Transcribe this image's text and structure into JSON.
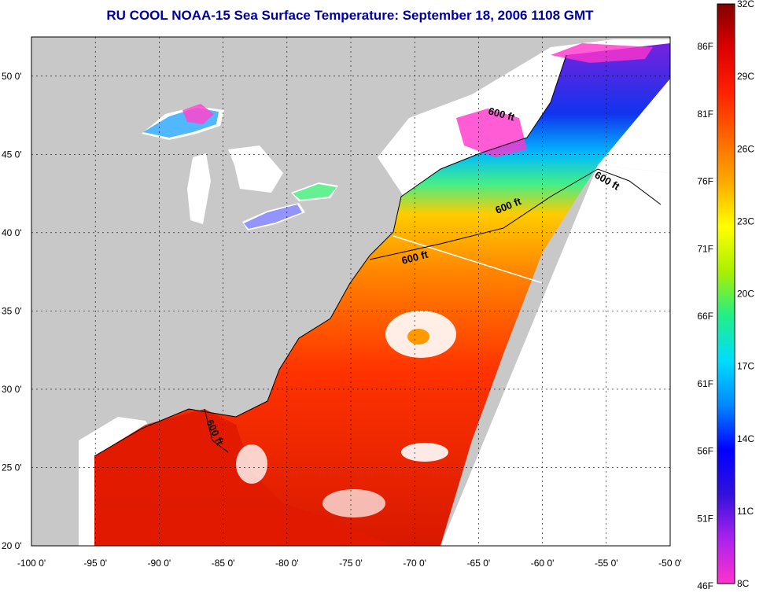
{
  "title": "RU COOL  NOAA-15  Sea Surface Temperature:  September 18, 2006 1108 GMT",
  "map": {
    "lon_range": [
      -100,
      -50
    ],
    "lat_range": [
      20,
      52.5
    ],
    "lon_ticks": [
      "-100 0'",
      "-95 0'",
      "-90 0'",
      "-85 0'",
      "-80 0'",
      "-75 0'",
      "-70 0'",
      "-65 0'",
      "-60 0'",
      "-55 0'",
      "-50 0'"
    ],
    "lat_ticks": [
      {
        "lat": 20,
        "label": "20 0'"
      },
      {
        "lat": 25,
        "label": "25 0'"
      },
      {
        "lat": 30,
        "label": "30 0'"
      },
      {
        "lat": 35,
        "label": "35 0'"
      },
      {
        "lat": 40,
        "label": "40 0'"
      },
      {
        "lat": 45,
        "label": "45 0'"
      },
      {
        "lat": 50,
        "label": "50 0'"
      }
    ],
    "grid": true,
    "land_color": "#c8c8c8",
    "nodata_color": "#ffffff",
    "contour_labels": [
      "600 ft",
      "600 ft",
      "600 ft",
      "600 ft",
      "600 ft"
    ]
  },
  "colorbar": {
    "range_c": [
      8,
      32
    ],
    "celsius_labels": [
      "32C",
      "29C",
      "26C",
      "23C",
      "20C",
      "17C",
      "14C",
      "11C",
      "8C"
    ],
    "fahrenheit_labels": [
      "86F",
      "81F",
      "76F",
      "71F",
      "66F",
      "61F",
      "56F",
      "51F",
      "46F"
    ],
    "colors": [
      "#ff33cc",
      "#aa22ee",
      "#3311dd",
      "#0000ff",
      "#0088ff",
      "#00ddff",
      "#22ee88",
      "#aaf000",
      "#ffff00",
      "#ffaa00",
      "#ff6600",
      "#ff2200",
      "#dd0000",
      "#800000"
    ]
  }
}
